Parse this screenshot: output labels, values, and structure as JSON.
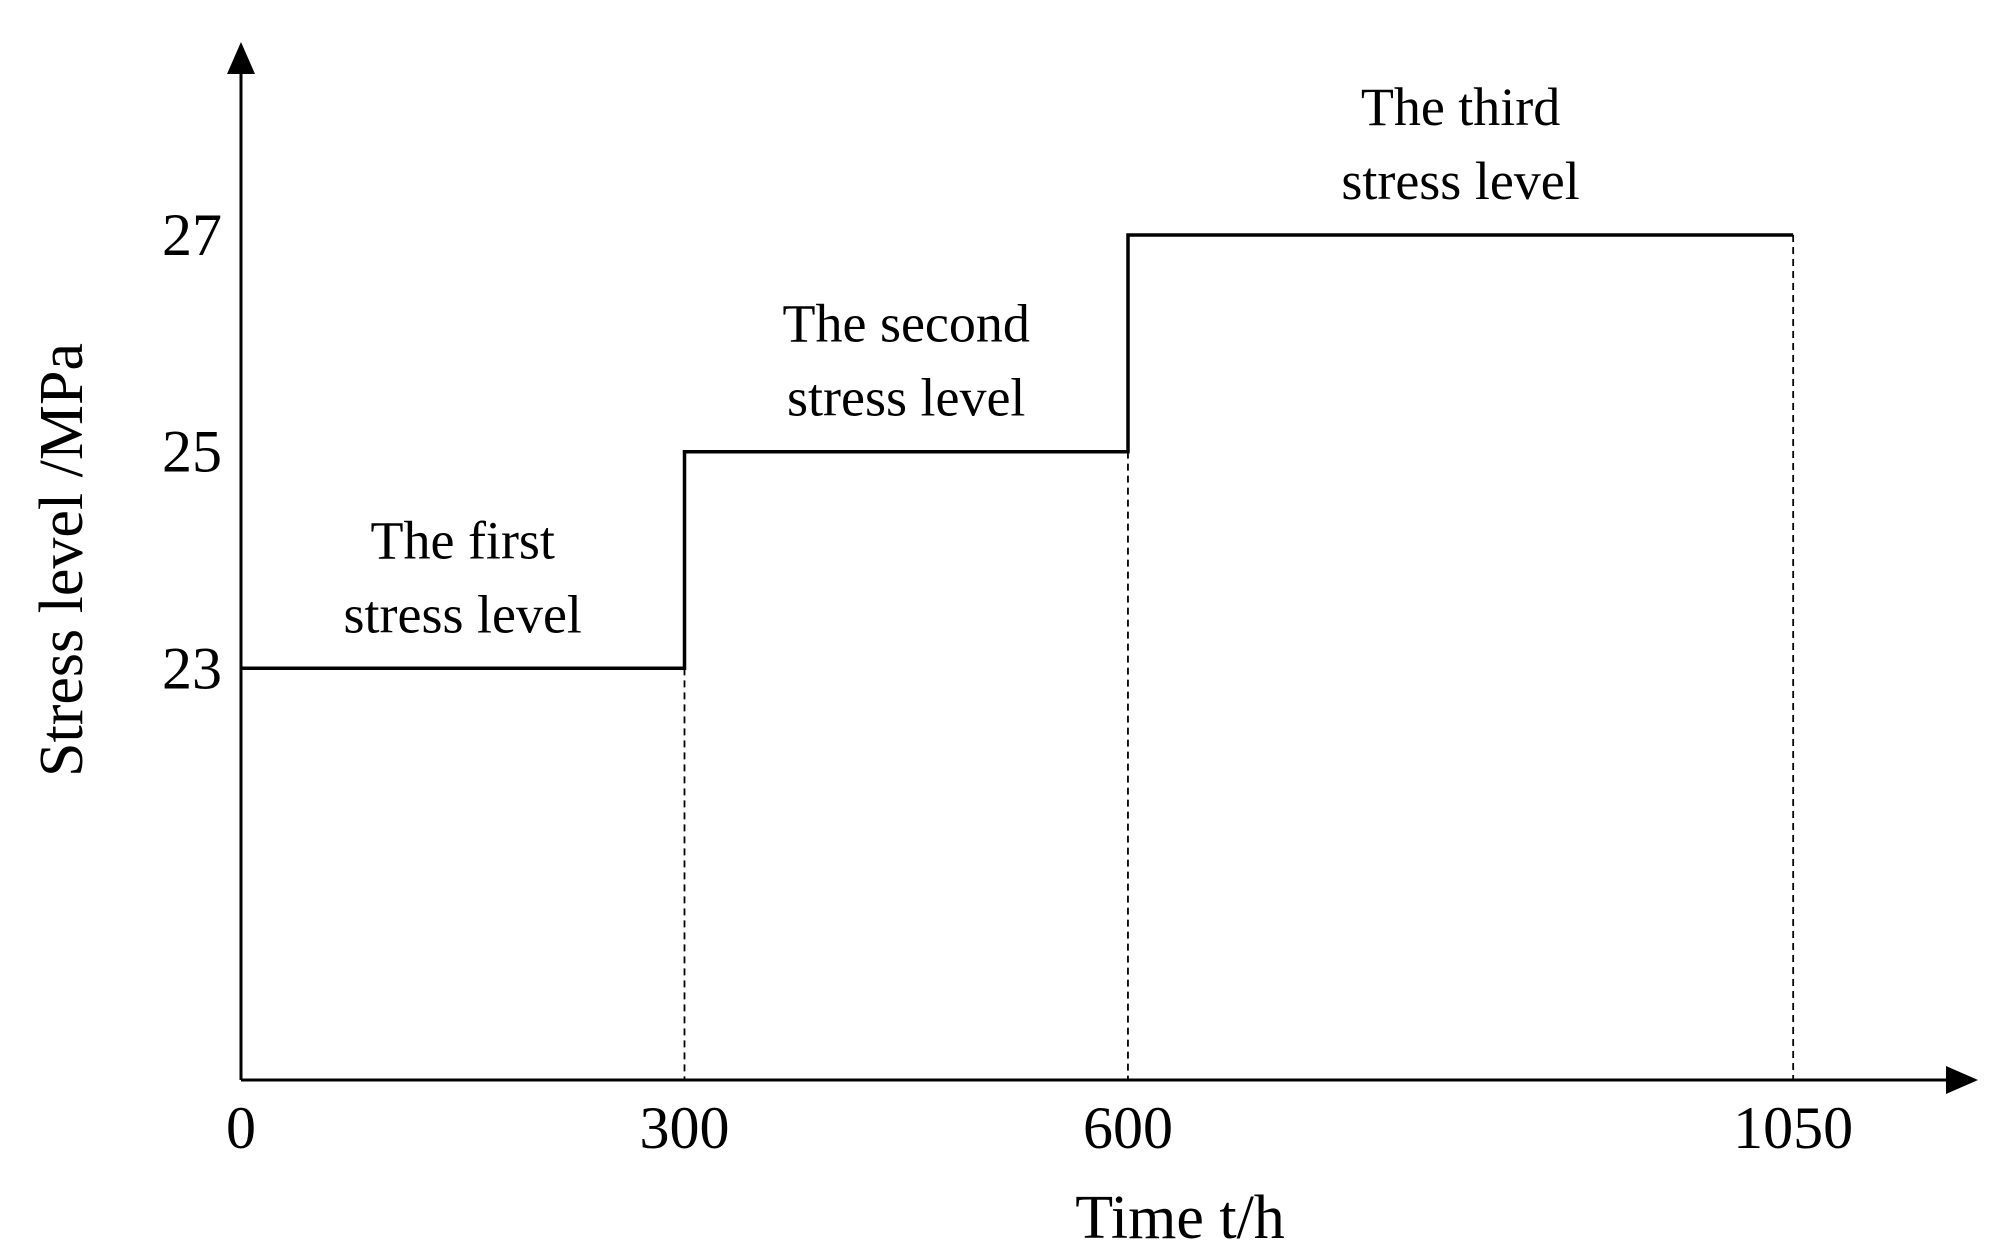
{
  "chart_data": {
    "type": "line",
    "title": "",
    "xlabel": "Time t/h",
    "ylabel": "Stress level /MPa",
    "x_ticks": [
      "0",
      "300",
      "600",
      "1050"
    ],
    "y_ticks": [
      "23",
      "25",
      "27"
    ],
    "series": [
      {
        "step": true,
        "x": [
          0,
          300,
          300,
          600,
          600,
          1050
        ],
        "y": [
          23,
          23,
          25,
          25,
          27,
          27
        ]
      }
    ],
    "segments": [
      {
        "x_start": 0,
        "x_end": 300,
        "y": 23,
        "label": [
          "The first",
          "stress level"
        ]
      },
      {
        "x_start": 300,
        "x_end": 600,
        "y": 25,
        "label": [
          "The second",
          "stress level"
        ]
      },
      {
        "x_start": 600,
        "x_end": 1050,
        "y": 27,
        "label": [
          "The third",
          "stress level"
        ]
      }
    ],
    "xlim": [
      0,
      1150
    ],
    "ylim": [
      19.2,
      28.8
    ],
    "grid": false,
    "dashed_drop_lines": true,
    "colors": {
      "line": "#000000",
      "axis": "#000000"
    }
  }
}
